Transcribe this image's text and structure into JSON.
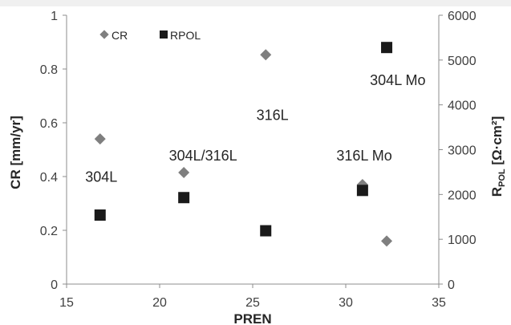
{
  "chart_data": {
    "type": "scatter",
    "xlabel": "PREN",
    "ylabel": "CR [mm/yr]",
    "y2label": {
      "base": "R",
      "sub": "POL",
      "rest": " [Ω·cm²]"
    },
    "xlim": [
      15,
      35
    ],
    "ylim": [
      0,
      1
    ],
    "y2lim": [
      0,
      6000
    ],
    "x_ticks": [
      15,
      20,
      25,
      30,
      35
    ],
    "y_ticks": [
      "0",
      "0.2",
      "0.4",
      "0.6",
      "0.8",
      "1"
    ],
    "y2_ticks": [
      "0",
      "1000",
      "2000",
      "3000",
      "4000",
      "5000",
      "6000"
    ],
    "grid": false,
    "legend_position": "top-left",
    "series": [
      {
        "name": "CR",
        "axis": "left",
        "marker": "diamond",
        "color": "#7f7f7f",
        "points": [
          {
            "x": 16.8,
            "y": 0.54
          },
          {
            "x": 21.3,
            "y": 0.415
          },
          {
            "x": 25.7,
            "y": 0.853
          },
          {
            "x": 30.9,
            "y": 0.37
          },
          {
            "x": 32.2,
            "y": 0.16
          }
        ]
      },
      {
        "name": "RPOL",
        "axis": "right",
        "marker": "square",
        "color": "#1a1a1a",
        "points": [
          {
            "x": 16.8,
            "y": 1540
          },
          {
            "x": 21.3,
            "y": 1930
          },
          {
            "x": 25.7,
            "y": 1190
          },
          {
            "x": 30.9,
            "y": 2090
          },
          {
            "x": 32.2,
            "y": 5280
          }
        ]
      }
    ],
    "annotations": [
      {
        "text": "304L",
        "x": 16.0,
        "y": 0.38
      },
      {
        "text": "304L/316L",
        "x": 20.5,
        "y": 0.46
      },
      {
        "text": "316L",
        "x": 25.2,
        "y": 0.61
      },
      {
        "text": "316L Mo",
        "x": 29.5,
        "y": 0.46
      },
      {
        "text": "304L Mo",
        "x": 31.3,
        "y": 0.74
      }
    ]
  }
}
